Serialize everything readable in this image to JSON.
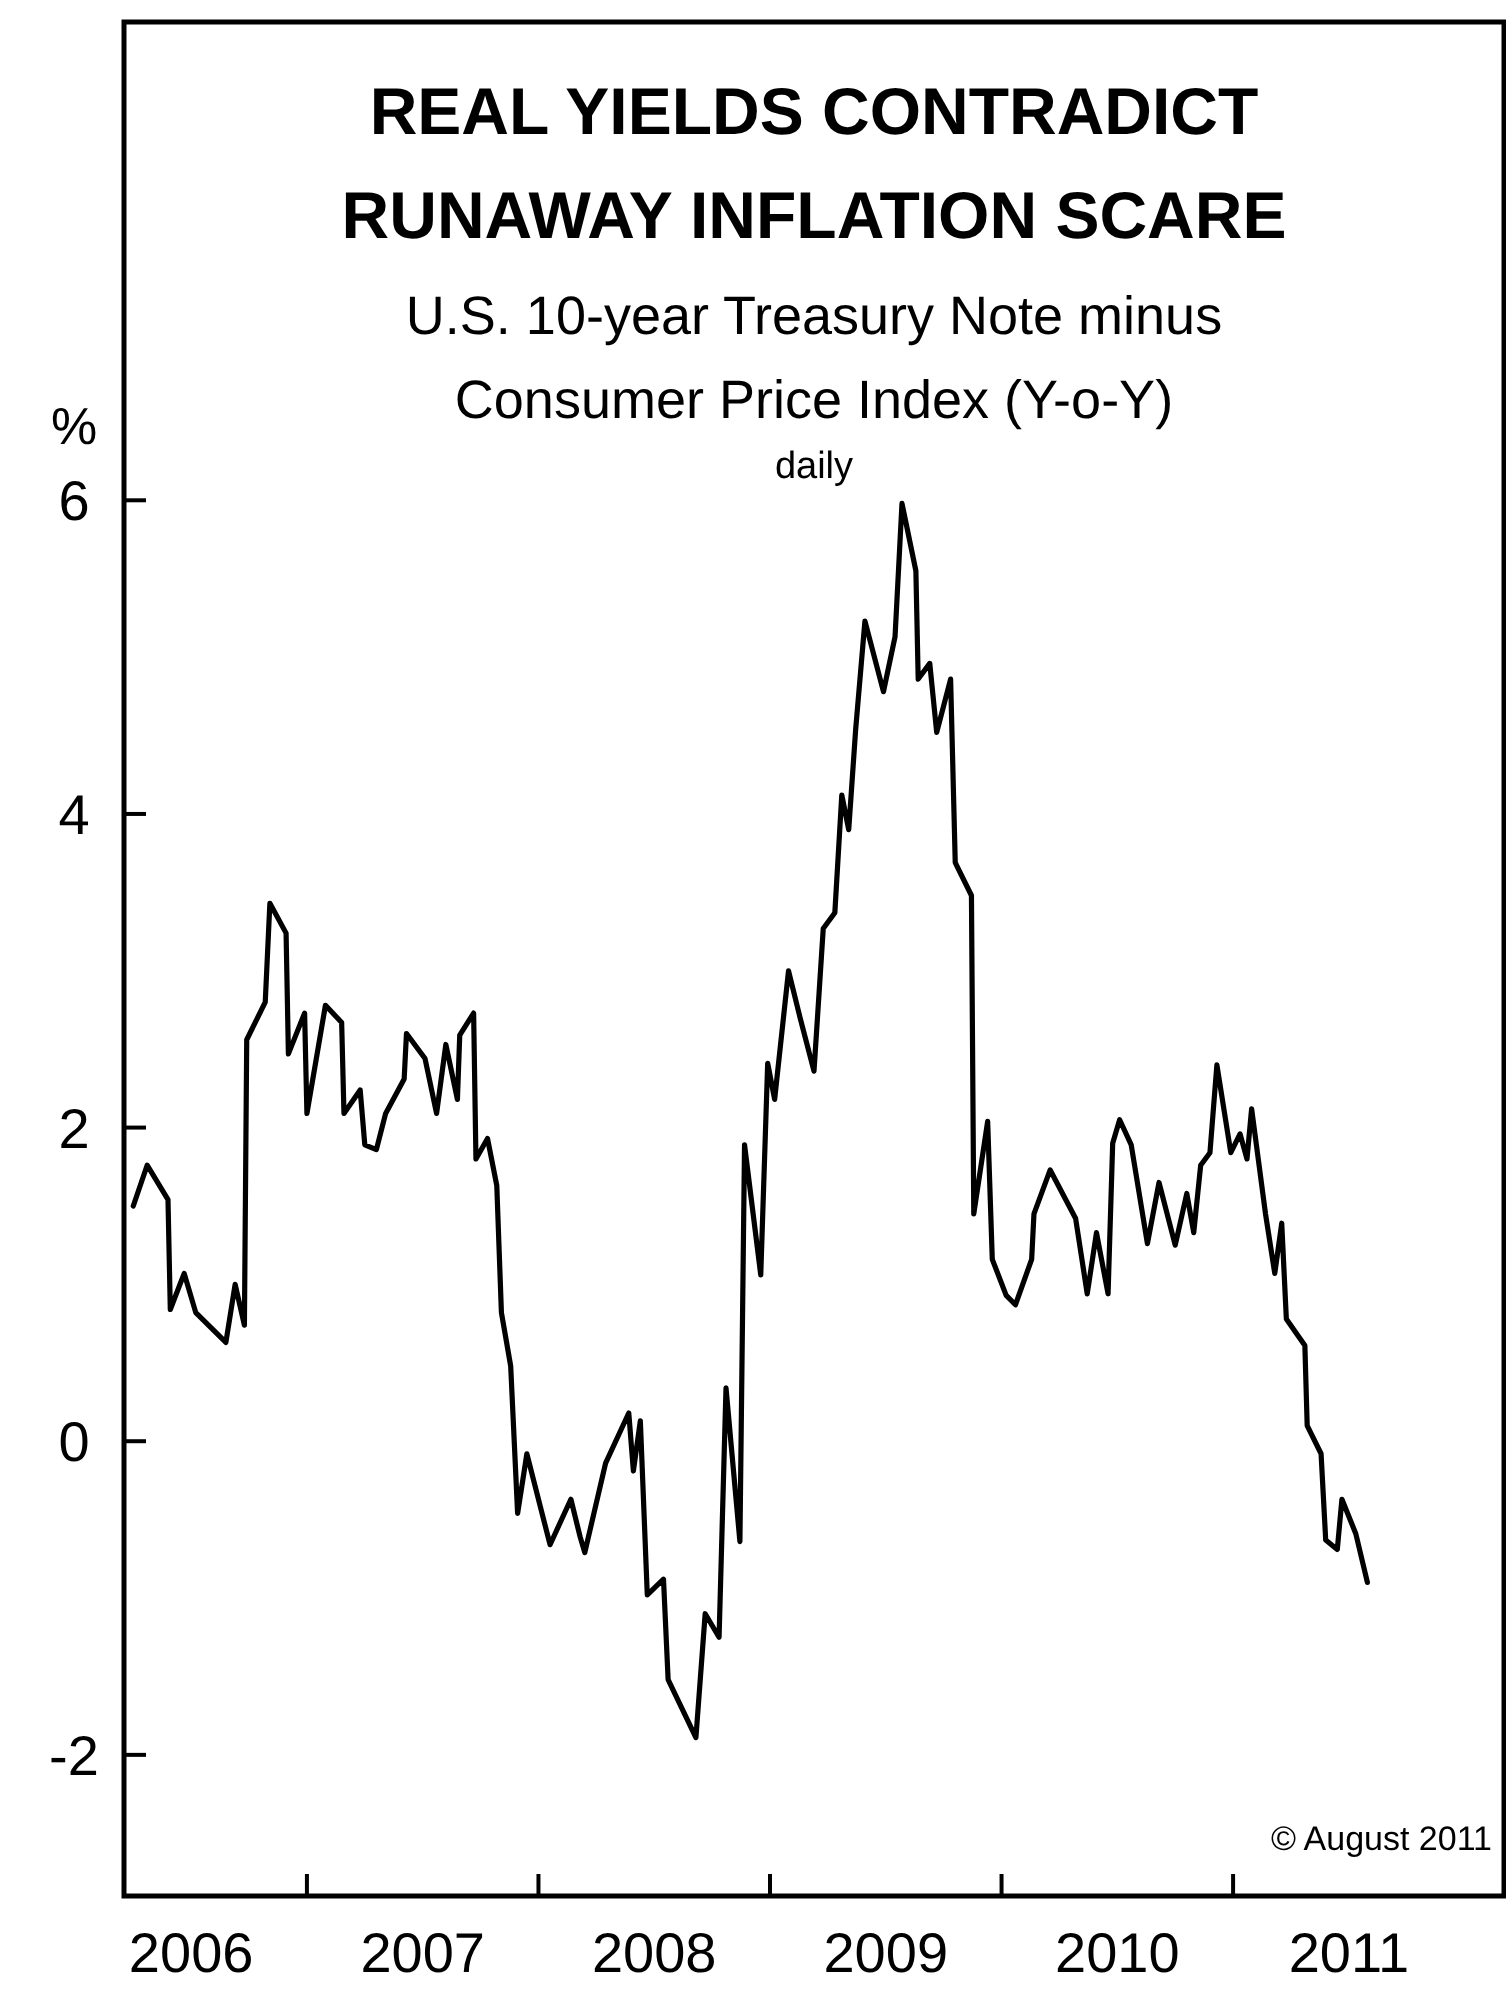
{
  "chart_data": {
    "type": "line",
    "title": "REAL YIELDS CONTRADICT\nRUNAWAY INFLATION SCARE",
    "subtitle": "U.S. 10-year Treasury Note minus\nConsumer Price Index (Y-o-Y)\ndaily",
    "ylabel": "%",
    "annotations": [
      "© August 2011"
    ],
    "xlim": [
      2006.21,
      2012.17
    ],
    "ylim": [
      -2.9,
      9.05
    ],
    "yticks": [
      -2,
      0,
      2,
      4,
      6
    ],
    "xticks": [
      {
        "value": 2006.5,
        "label": "2006"
      },
      {
        "value": 2007,
        "label": null
      },
      {
        "value": 2007.5,
        "label": "2007"
      },
      {
        "value": 2008,
        "label": null
      },
      {
        "value": 2008.5,
        "label": "2008"
      },
      {
        "value": 2009,
        "label": null
      },
      {
        "value": 2009.5,
        "label": "2009"
      },
      {
        "value": 2010,
        "label": null
      },
      {
        "value": 2010.5,
        "label": "2010"
      },
      {
        "value": 2011,
        "label": null
      },
      {
        "value": 2011.5,
        "label": "2011"
      }
    ],
    "grid": false,
    "marker": "none",
    "line_style": "solid",
    "series": [
      {
        "color": "#000000",
        "x": [
          2006.25,
          2006.31,
          2006.4,
          2006.41,
          2006.47,
          2006.52,
          2006.65,
          2006.69,
          2006.73,
          2006.74,
          2006.82,
          2006.84,
          2006.91,
          2006.92,
          2006.99,
          2007.0,
          2007.08,
          2007.15,
          2007.16,
          2007.23,
          2007.25,
          2007.3,
          2007.34,
          2007.42,
          2007.43,
          2007.51,
          2007.56,
          2007.6,
          2007.65,
          2007.66,
          2007.72,
          2007.73,
          2007.78,
          2007.82,
          2007.84,
          2007.88,
          2007.91,
          2007.95,
          2008.05,
          2008.14,
          2008.18,
          2008.2,
          2008.29,
          2008.39,
          2008.41,
          2008.44,
          2008.47,
          2008.54,
          2008.56,
          2008.68,
          2008.72,
          2008.78,
          2008.81,
          2008.87,
          2008.89,
          2008.96,
          2008.99,
          2009.02,
          2009.08,
          2009.13,
          2009.19,
          2009.23,
          2009.28,
          2009.31,
          2009.34,
          2009.37,
          2009.41,
          2009.49,
          2009.54,
          2009.57,
          2009.63,
          2009.64,
          2009.69,
          2009.72,
          2009.78,
          2009.8,
          2009.87,
          2009.88,
          2009.94,
          2009.96,
          2010.02,
          2010.06,
          2010.13,
          2010.14,
          2010.21,
          2010.32,
          2010.37,
          2010.41,
          2010.46,
          2010.48,
          2010.51,
          2010.56,
          2010.63,
          2010.68,
          2010.75,
          2010.8,
          2010.83,
          2010.86,
          2010.9,
          2010.93,
          2010.99,
          2011.03,
          2011.06,
          2011.08,
          2011.14,
          2011.18,
          2011.21,
          2011.23,
          2011.31,
          2011.32,
          2011.38,
          2011.4,
          2011.45,
          2011.47,
          2011.53,
          2011.58
        ],
        "values": [
          1.5,
          1.76,
          1.54,
          0.84,
          1.07,
          0.82,
          0.63,
          1.0,
          0.74,
          2.56,
          2.8,
          3.43,
          3.24,
          2.47,
          2.73,
          2.09,
          2.78,
          2.67,
          2.09,
          2.24,
          1.89,
          1.86,
          2.09,
          2.31,
          2.6,
          2.44,
          2.09,
          2.53,
          2.18,
          2.59,
          2.73,
          1.8,
          1.93,
          1.63,
          0.82,
          0.48,
          -0.46,
          -0.08,
          -0.66,
          -0.37,
          -0.61,
          -0.71,
          -0.14,
          0.18,
          -0.19,
          0.13,
          -0.98,
          -0.88,
          -1.52,
          -1.89,
          -1.1,
          -1.25,
          0.34,
          -0.64,
          1.89,
          1.06,
          2.41,
          2.18,
          3.0,
          2.7,
          2.36,
          3.27,
          3.37,
          4.12,
          3.9,
          4.54,
          5.23,
          4.78,
          5.13,
          5.98,
          5.55,
          4.86,
          4.96,
          4.52,
          4.86,
          3.69,
          3.48,
          1.45,
          2.04,
          1.16,
          0.93,
          0.87,
          1.16,
          1.45,
          1.73,
          1.42,
          0.94,
          1.33,
          0.94,
          1.9,
          2.05,
          1.89,
          1.26,
          1.65,
          1.25,
          1.58,
          1.33,
          1.76,
          1.84,
          2.4,
          1.84,
          1.96,
          1.8,
          2.12,
          1.45,
          1.07,
          1.39,
          0.78,
          0.61,
          0.1,
          -0.08,
          -0.63,
          -0.69,
          -0.37,
          -0.59,
          -0.9
        ]
      }
    ]
  }
}
